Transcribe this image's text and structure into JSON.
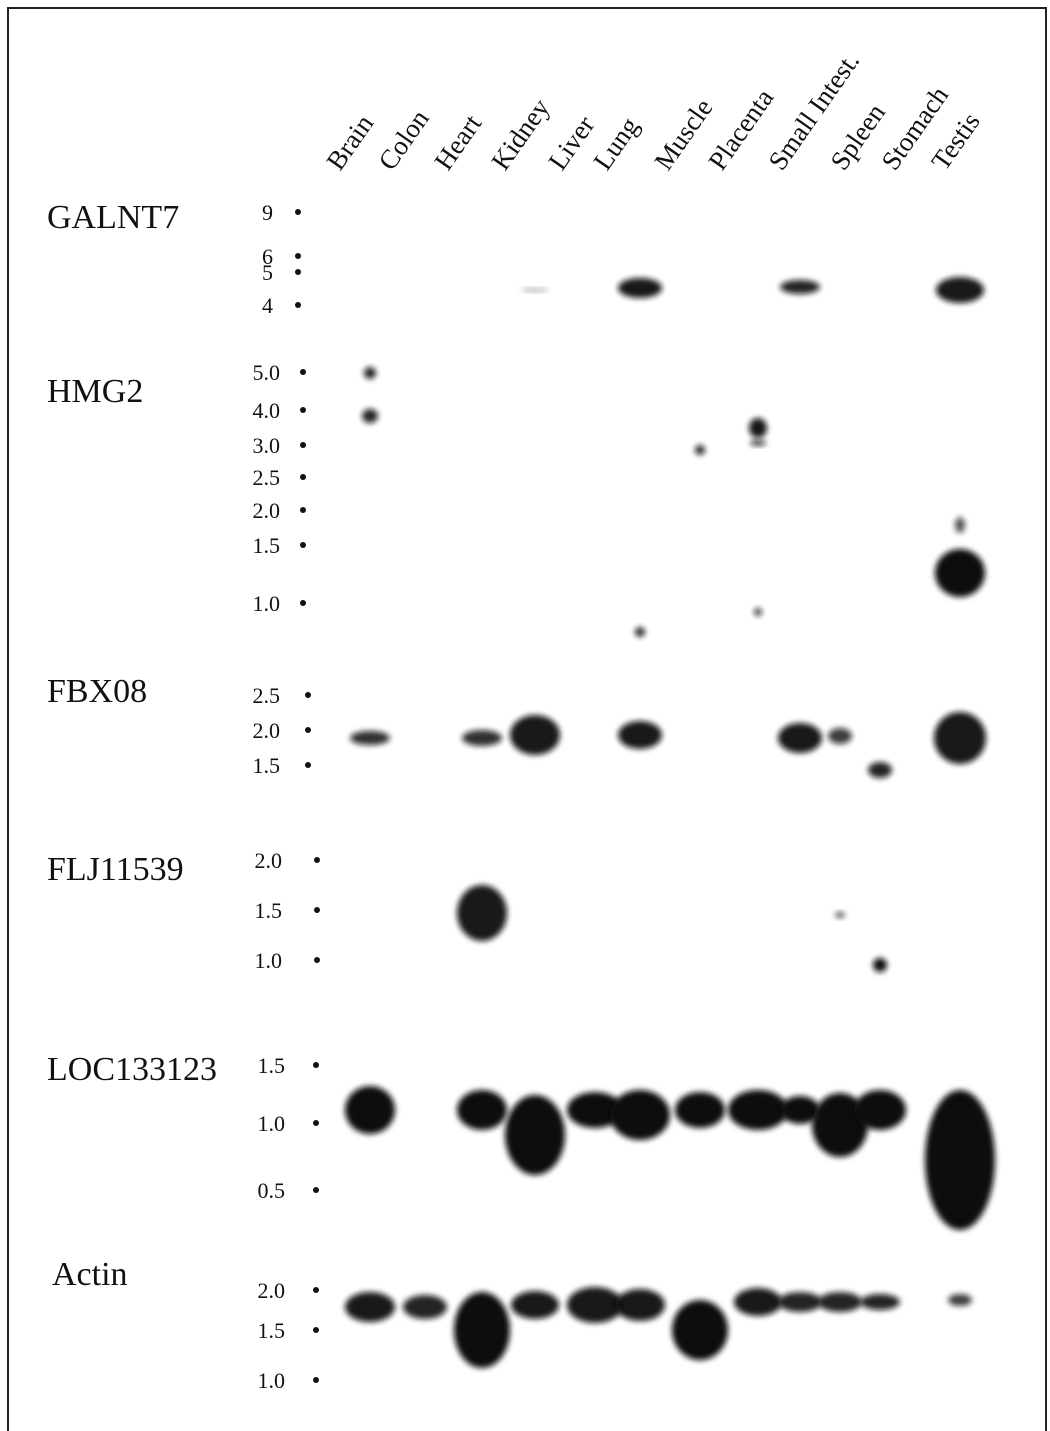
{
  "lanes": [
    "Brain",
    "Colon",
    "Heart",
    "Kidney",
    "Liver",
    "Lung",
    "Muscle",
    "Placenta",
    "Small Intest.",
    "Spleen",
    "Stomach",
    "Testis"
  ],
  "panels": [
    {
      "label": "GALNT7",
      "markers": [
        "9",
        "6",
        "5",
        "4"
      ]
    },
    {
      "label": "HMG2",
      "markers": [
        "5.0",
        "4.0",
        "3.0",
        "2.5",
        "2.0",
        "1.5",
        "1.0"
      ]
    },
    {
      "label": "FBX08",
      "markers": [
        "2.5",
        "2.0",
        "1.5"
      ]
    },
    {
      "label": "FLJ11539",
      "markers": [
        "2.0",
        "1.5",
        "1.0"
      ]
    },
    {
      "label": "LOC133123",
      "markers": [
        "1.5",
        "1.0",
        "0.5"
      ]
    },
    {
      "label": "Actin",
      "markers": [
        "2.0",
        "1.5",
        "1.0"
      ]
    }
  ]
}
